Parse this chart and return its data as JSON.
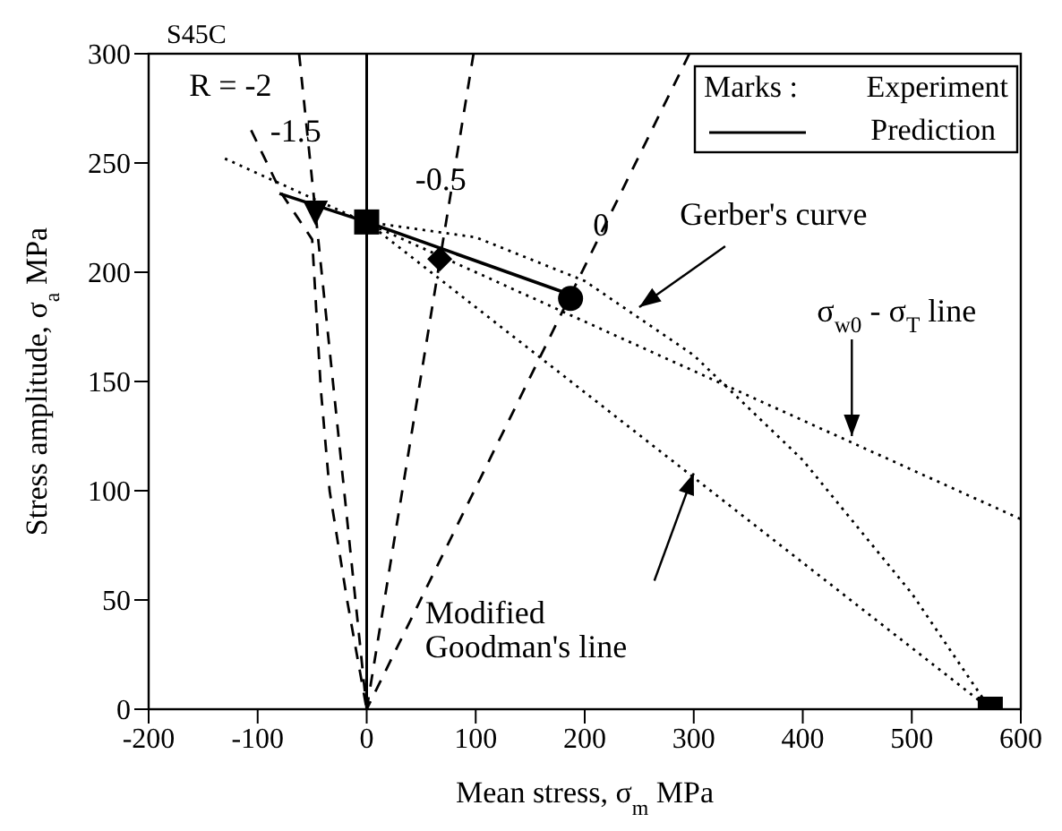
{
  "chart_data": {
    "type": "line",
    "title": "S45C",
    "xlabel": "Mean stress, σ$_{m}$ MPa",
    "ylabel": "Stress amplitude, σ$_{a}$ MPa",
    "legend_title": "Marks :",
    "legend": "top right",
    "grid": false,
    "xlim": [
      -200,
      600
    ],
    "xticks": [
      -200,
      -100,
      0,
      100,
      200,
      300,
      400,
      500,
      600
    ],
    "ylim": [
      0,
      300
    ],
    "yticks": [
      0,
      50,
      100,
      150,
      200,
      250,
      300
    ],
    "ref_lines": [
      {
        "axis": "x",
        "value": 0,
        "color": "#000000",
        "line_style": "solid"
      }
    ],
    "series": [
      {
        "name": "Prediction",
        "type": "line",
        "color": "#000000",
        "line_style": "solid",
        "marker": "none",
        "x": [
          -80,
          0,
          180
        ],
        "values": [
          236,
          223,
          191
        ]
      },
      {
        "name": "Experiment",
        "type": "scatter",
        "color": "#000000",
        "marker": [
          "triangle",
          "square",
          "diamond",
          "circle",
          "square"
        ],
        "x": [
          -47,
          0,
          67,
          187,
          572
        ],
        "values": [
          227,
          223,
          206,
          188,
          0
        ]
      },
      {
        "color": "#000000",
        "line_style": "dotted",
        "marker": "none",
        "x": [
          0,
          100,
          200,
          300,
          400,
          500,
          572
        ],
        "values": [
          223,
          216,
          196,
          162,
          114,
          53,
          0
        ]
      },
      {
        "color": "#000000",
        "line_style": "dotted",
        "marker": "none",
        "x": [
          0,
          572
        ],
        "values": [
          223,
          0
        ]
      },
      {
        "color": "#000000",
        "line_style": "dotted",
        "marker": "none",
        "x": [
          -130,
          600
        ],
        "values": [
          252,
          87
        ]
      },
      {
        "color": "#000000",
        "line_style": "dashed",
        "marker": "none",
        "x": [
          -62,
          0
        ],
        "values": [
          300,
          0
        ]
      },
      {
        "color": "#000000",
        "line_style": "dashed",
        "marker": "none",
        "x": [
          -106,
          -78,
          -50,
          -42,
          -34,
          -18,
          0
        ],
        "values": [
          265,
          236,
          215,
          146,
          100,
          50,
          0
        ]
      },
      {
        "color": "#000000",
        "line_style": "dashed",
        "marker": "none",
        "x": [
          98,
          0
        ],
        "values": [
          300,
          0
        ]
      },
      {
        "color": "#000000",
        "line_style": "dashed",
        "marker": "none",
        "x": [
          296,
          0
        ],
        "values": [
          300,
          0
        ]
      }
    ],
    "annotations": [
      "R = -2",
      "-1.5",
      "-0.5",
      "0",
      {
        "text": "Gerber's curve",
        "x": 250,
        "y": 184
      },
      {
        "text": "σ$_{w0}$- σ$_{T}$ line",
        "x": 445,
        "y": 125
      },
      {
        "text": "Modified\nGoodman's line",
        "x": 300,
        "y": 108
      }
    ]
  }
}
